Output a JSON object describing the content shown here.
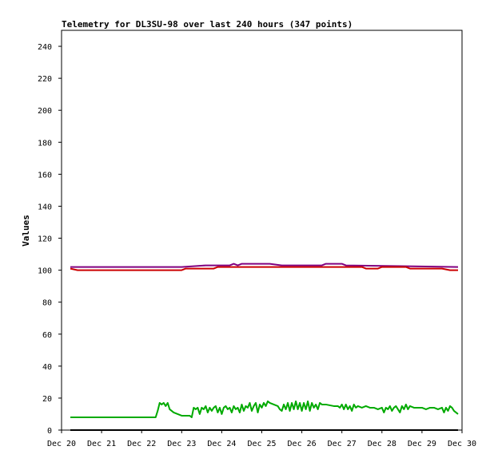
{
  "chart_data": {
    "type": "line",
    "title": "Telemetry for DL3SU-98 over last 240 hours (347 points)",
    "xlabel": "",
    "ylabel": "Values",
    "xlim": [
      0,
      10
    ],
    "ylim": [
      0,
      250
    ],
    "grid": false,
    "x_ticks": [
      {
        "x": 0,
        "label": "Dec 20"
      },
      {
        "x": 1,
        "label": "Dec 21"
      },
      {
        "x": 2,
        "label": "Dec 22"
      },
      {
        "x": 3,
        "label": "Dec 23"
      },
      {
        "x": 4,
        "label": "Dec 24"
      },
      {
        "x": 5,
        "label": "Dec 25"
      },
      {
        "x": 6,
        "label": "Dec 26"
      },
      {
        "x": 7,
        "label": "Dec 27"
      },
      {
        "x": 8,
        "label": "Dec 28"
      },
      {
        "x": 9,
        "label": "Dec 29"
      },
      {
        "x": 10,
        "label": "Dec 30"
      }
    ],
    "y_ticks": [
      0,
      20,
      40,
      60,
      80,
      100,
      120,
      140,
      160,
      180,
      200,
      220,
      240
    ],
    "series": [
      {
        "name": "",
        "color": "#800080",
        "points": [
          [
            0.22,
            102
          ],
          [
            3.0,
            102
          ],
          [
            3.6,
            103
          ],
          [
            4.2,
            103
          ],
          [
            4.3,
            104
          ],
          [
            4.4,
            103
          ],
          [
            4.5,
            104
          ],
          [
            5.2,
            104
          ],
          [
            5.5,
            103
          ],
          [
            6.5,
            103
          ],
          [
            6.6,
            104
          ],
          [
            7.0,
            104
          ],
          [
            7.1,
            103
          ],
          [
            9.9,
            102
          ]
        ]
      },
      {
        "name": "",
        "color": "#cc0000",
        "points": [
          [
            0.22,
            101
          ],
          [
            0.4,
            100
          ],
          [
            2.5,
            100
          ],
          [
            3.0,
            100
          ],
          [
            3.1,
            101
          ],
          [
            3.8,
            101
          ],
          [
            3.9,
            102
          ],
          [
            7.5,
            102
          ],
          [
            7.6,
            101
          ],
          [
            7.9,
            101
          ],
          [
            8.0,
            102
          ],
          [
            8.6,
            102
          ],
          [
            8.7,
            101
          ],
          [
            9.5,
            101
          ],
          [
            9.7,
            100
          ],
          [
            9.9,
            100
          ]
        ]
      },
      {
        "name": "",
        "color": "#00aa00",
        "points": [
          [
            0.22,
            8
          ],
          [
            1.5,
            8
          ],
          [
            2.35,
            8
          ],
          [
            2.4,
            12
          ],
          [
            2.45,
            17
          ],
          [
            2.5,
            16
          ],
          [
            2.55,
            17
          ],
          [
            2.6,
            15
          ],
          [
            2.65,
            17
          ],
          [
            2.7,
            13
          ],
          [
            2.8,
            11
          ],
          [
            2.9,
            10
          ],
          [
            3.0,
            9
          ],
          [
            3.1,
            9
          ],
          [
            3.2,
            9
          ],
          [
            3.25,
            8
          ],
          [
            3.3,
            14
          ],
          [
            3.35,
            13
          ],
          [
            3.4,
            14
          ],
          [
            3.45,
            10
          ],
          [
            3.5,
            14
          ],
          [
            3.55,
            13
          ],
          [
            3.6,
            15
          ],
          [
            3.65,
            11
          ],
          [
            3.7,
            14
          ],
          [
            3.75,
            12
          ],
          [
            3.8,
            14
          ],
          [
            3.85,
            15
          ],
          [
            3.9,
            11
          ],
          [
            3.95,
            14
          ],
          [
            4.0,
            10
          ],
          [
            4.05,
            14
          ],
          [
            4.1,
            15
          ],
          [
            4.15,
            13
          ],
          [
            4.2,
            14
          ],
          [
            4.25,
            11
          ],
          [
            4.3,
            15
          ],
          [
            4.35,
            13
          ],
          [
            4.4,
            14
          ],
          [
            4.45,
            11
          ],
          [
            4.5,
            16
          ],
          [
            4.55,
            12
          ],
          [
            4.6,
            15
          ],
          [
            4.65,
            14
          ],
          [
            4.7,
            17
          ],
          [
            4.75,
            12
          ],
          [
            4.8,
            15
          ],
          [
            4.85,
            17
          ],
          [
            4.9,
            11
          ],
          [
            4.95,
            16
          ],
          [
            5.0,
            14
          ],
          [
            5.05,
            17
          ],
          [
            5.1,
            15
          ],
          [
            5.15,
            18
          ],
          [
            5.2,
            17
          ],
          [
            5.3,
            16
          ],
          [
            5.4,
            15
          ],
          [
            5.45,
            13
          ],
          [
            5.5,
            12
          ],
          [
            5.55,
            16
          ],
          [
            5.6,
            13
          ],
          [
            5.65,
            17
          ],
          [
            5.7,
            12
          ],
          [
            5.75,
            17
          ],
          [
            5.8,
            13
          ],
          [
            5.85,
            18
          ],
          [
            5.9,
            13
          ],
          [
            5.95,
            17
          ],
          [
            6.0,
            12
          ],
          [
            6.05,
            17
          ],
          [
            6.1,
            13
          ],
          [
            6.15,
            18
          ],
          [
            6.2,
            12
          ],
          [
            6.25,
            17
          ],
          [
            6.3,
            14
          ],
          [
            6.35,
            16
          ],
          [
            6.4,
            13
          ],
          [
            6.45,
            17
          ],
          [
            6.5,
            16
          ],
          [
            6.6,
            16
          ],
          [
            6.8,
            15
          ],
          [
            6.9,
            15
          ],
          [
            6.95,
            14
          ],
          [
            7.0,
            16
          ],
          [
            7.05,
            13
          ],
          [
            7.1,
            16
          ],
          [
            7.15,
            13
          ],
          [
            7.2,
            15
          ],
          [
            7.25,
            12
          ],
          [
            7.3,
            16
          ],
          [
            7.35,
            14
          ],
          [
            7.4,
            15
          ],
          [
            7.5,
            14
          ],
          [
            7.6,
            15
          ],
          [
            7.7,
            14
          ],
          [
            7.8,
            14
          ],
          [
            7.9,
            13
          ],
          [
            8.0,
            14
          ],
          [
            8.05,
            11
          ],
          [
            8.1,
            14
          ],
          [
            8.15,
            13
          ],
          [
            8.2,
            15
          ],
          [
            8.25,
            12
          ],
          [
            8.3,
            14
          ],
          [
            8.35,
            15
          ],
          [
            8.4,
            13
          ],
          [
            8.45,
            11
          ],
          [
            8.5,
            15
          ],
          [
            8.55,
            13
          ],
          [
            8.6,
            16
          ],
          [
            8.65,
            13
          ],
          [
            8.7,
            15
          ],
          [
            8.8,
            14
          ],
          [
            8.9,
            14
          ],
          [
            9.0,
            14
          ],
          [
            9.1,
            13
          ],
          [
            9.2,
            14
          ],
          [
            9.3,
            14
          ],
          [
            9.4,
            13
          ],
          [
            9.5,
            14
          ],
          [
            9.55,
            11
          ],
          [
            9.6,
            14
          ],
          [
            9.65,
            12
          ],
          [
            9.7,
            15
          ],
          [
            9.75,
            14
          ],
          [
            9.8,
            12
          ],
          [
            9.85,
            11
          ],
          [
            9.9,
            10
          ]
        ]
      },
      {
        "name": "",
        "color": "#000000",
        "points": [
          [
            0.22,
            0
          ],
          [
            9.9,
            0
          ]
        ]
      }
    ]
  }
}
